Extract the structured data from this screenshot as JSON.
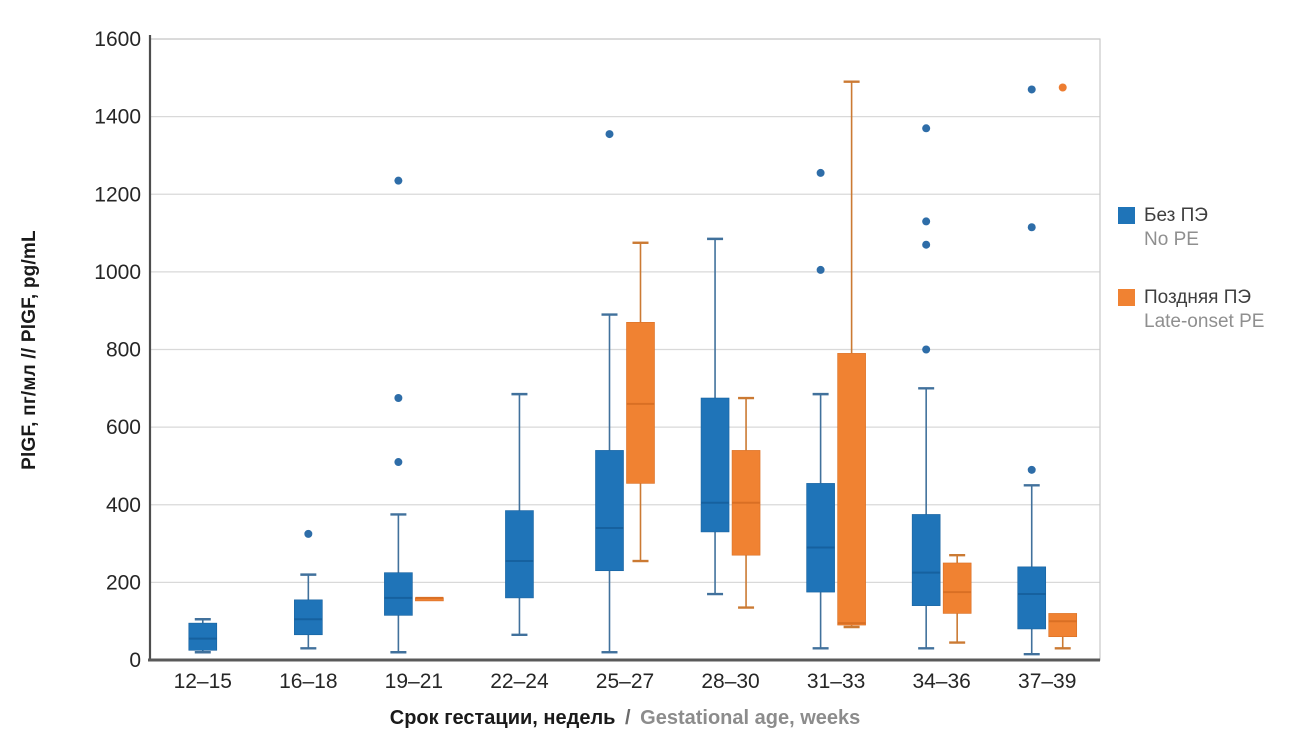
{
  "chart": {
    "y_title": "PlGF, пг/мл // PlGF, pg/mL",
    "x_title_ru": "Срок гестации, недель",
    "x_title_sep": "/",
    "x_title_en": "Gestational age, weeks"
  },
  "legend": {
    "items": [
      {
        "ru": "Без ПЭ",
        "en": "No PE",
        "color": "#1F74B8"
      },
      {
        "ru": "Поздняя ПЭ",
        "en": "Late-onset PE",
        "color": "#F08232"
      }
    ]
  },
  "chart_data": {
    "type": "boxplot",
    "title": "",
    "xlabel": "Срок гестации, недель / Gestational age, weeks",
    "ylabel": "PlGF, пг/мл // PlGF, pg/mL",
    "categories": [
      "12–15",
      "16–18",
      "19–21",
      "22–24",
      "25–27",
      "28–30",
      "31–33",
      "34–36",
      "37–39"
    ],
    "ylim": [
      0,
      1600
    ],
    "ytick_step": 200,
    "yticks": [
      0,
      200,
      400,
      600,
      800,
      1000,
      1200,
      1400,
      1600
    ],
    "grid": true,
    "legend_position": "right",
    "colors": {
      "grid": "#d9d9d9",
      "frame": "#c9c9c9",
      "axis": "#595959",
      "tick_label": "#262626"
    },
    "series": [
      {
        "name": "Без ПЭ / No PE",
        "color": "#1F74B8",
        "whisker_color": "#41719C",
        "median_color": "#16619F",
        "boxes": [
          {
            "category": "12–15",
            "min": 20,
            "q1": 25,
            "median": 55,
            "q3": 95,
            "max": 105,
            "outliers": []
          },
          {
            "category": "16–18",
            "min": 30,
            "q1": 65,
            "median": 105,
            "q3": 155,
            "max": 220,
            "outliers": [
              325
            ]
          },
          {
            "category": "19–21",
            "min": 20,
            "q1": 115,
            "median": 160,
            "q3": 225,
            "max": 375,
            "outliers": [
              510,
              675,
              1235
            ]
          },
          {
            "category": "22–24",
            "min": 65,
            "q1": 160,
            "median": 255,
            "q3": 385,
            "max": 685,
            "outliers": []
          },
          {
            "category": "25–27",
            "min": 20,
            "q1": 230,
            "median": 340,
            "q3": 540,
            "max": 890,
            "outliers": [
              1355
            ]
          },
          {
            "category": "28–30",
            "min": 170,
            "q1": 330,
            "median": 405,
            "q3": 675,
            "max": 1085,
            "outliers": []
          },
          {
            "category": "31–33",
            "min": 30,
            "q1": 175,
            "median": 290,
            "q3": 455,
            "max": 685,
            "outliers": [
              1005,
              1255
            ]
          },
          {
            "category": "34–36",
            "min": 30,
            "q1": 140,
            "median": 225,
            "q3": 375,
            "max": 700,
            "outliers": [
              800,
              1070,
              1130,
              1370
            ]
          },
          {
            "category": "37–39",
            "min": 15,
            "q1": 80,
            "median": 170,
            "q3": 240,
            "max": 450,
            "outliers": [
              490,
              1115,
              1470
            ]
          }
        ]
      },
      {
        "name": "Поздняя ПЭ / Late-onset PE",
        "color": "#F08232",
        "whisker_color": "#CB7A33",
        "median_color": "#D96F24",
        "boxes": [
          null,
          null,
          {
            "category": "19–21",
            "min": 160,
            "q1": 160,
            "median": 160,
            "q3": 160,
            "max": 160,
            "outliers": []
          },
          null,
          {
            "category": "25–27",
            "min": 255,
            "q1": 455,
            "median": 660,
            "q3": 870,
            "max": 1075,
            "outliers": []
          },
          {
            "category": "28–30",
            "min": 135,
            "q1": 270,
            "median": 405,
            "q3": 540,
            "max": 675,
            "outliers": []
          },
          {
            "category": "31–33",
            "min": 85,
            "q1": 90,
            "median": 95,
            "q3": 790,
            "max": 1490,
            "outliers": []
          },
          {
            "category": "34–36",
            "min": 45,
            "q1": 120,
            "median": 175,
            "q3": 250,
            "max": 270,
            "outliers": []
          },
          {
            "category": "37–39",
            "min": 30,
            "q1": 60,
            "median": 100,
            "q3": 120,
            "max": 120,
            "outliers": [
              1475
            ]
          }
        ]
      }
    ]
  }
}
